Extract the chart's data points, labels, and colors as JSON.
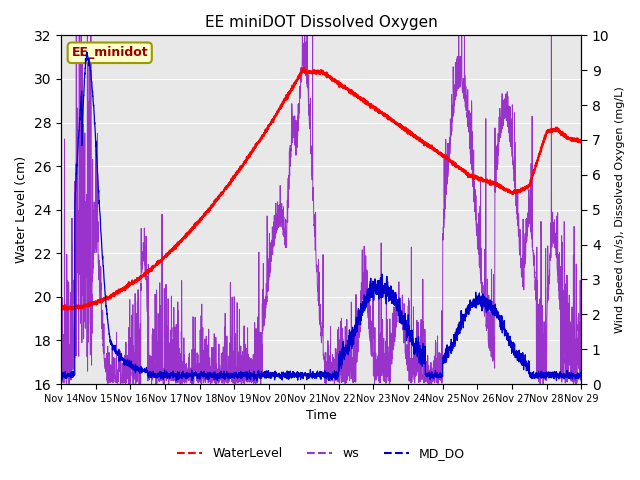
{
  "title": "EE miniDOT Dissolved Oxygen",
  "xlabel": "Time",
  "ylabel_left": "Water Level (cm)",
  "ylabel_right": "Wind Speed (m/s), Dissolved Oxygen (mg/L)",
  "annotation": "EE_minidot",
  "left_ylim": [
    16,
    32
  ],
  "right_ylim": [
    0.0,
    10.0
  ],
  "left_yticks": [
    16,
    18,
    20,
    22,
    24,
    26,
    28,
    30,
    32
  ],
  "right_yticks": [
    0.0,
    1.0,
    2.0,
    3.0,
    4.0,
    5.0,
    6.0,
    7.0,
    8.0,
    9.0,
    10.0
  ],
  "xtick_labels": [
    "Nov 14",
    "Nov 15",
    "Nov 16",
    "Nov 17",
    "Nov 18",
    "Nov 19",
    "Nov 20",
    "Nov 21",
    "Nov 22",
    "Nov 23",
    "Nov 24",
    "Nov 25",
    "Nov 26",
    "Nov 27",
    "Nov 28",
    "Nov 29"
  ],
  "water_level_color": "#ff0000",
  "ws_color": "#9933cc",
  "md_do_color": "#0000cc",
  "legend_labels": [
    "WaterLevel",
    "ws",
    "MD_DO"
  ],
  "bg_color": "#e8e8e8",
  "annotation_color": "#990000",
  "annotation_bg": "#ffffcc",
  "annotation_edge": "#999900"
}
